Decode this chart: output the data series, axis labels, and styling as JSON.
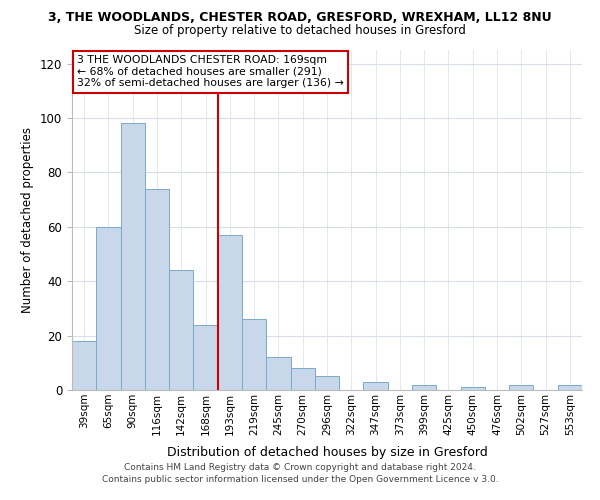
{
  "title": "3, THE WOODLANDS, CHESTER ROAD, GRESFORD, WREXHAM, LL12 8NU",
  "subtitle": "Size of property relative to detached houses in Gresford",
  "xlabel": "Distribution of detached houses by size in Gresford",
  "ylabel": "Number of detached properties",
  "bar_color": "#c8d8ea",
  "bar_edge_color": "#7aaac8",
  "bins": [
    "39sqm",
    "65sqm",
    "90sqm",
    "116sqm",
    "142sqm",
    "168sqm",
    "193sqm",
    "219sqm",
    "245sqm",
    "270sqm",
    "296sqm",
    "322sqm",
    "347sqm",
    "373sqm",
    "399sqm",
    "425sqm",
    "450sqm",
    "476sqm",
    "502sqm",
    "527sqm",
    "553sqm"
  ],
  "values": [
    18,
    60,
    98,
    74,
    44,
    24,
    57,
    26,
    12,
    8,
    5,
    0,
    3,
    0,
    2,
    0,
    1,
    0,
    2,
    0,
    2
  ],
  "vline_index": 5,
  "vline_color": "#cc0000",
  "annotation_line1": "3 THE WOODLANDS CHESTER ROAD: 169sqm",
  "annotation_line2": "← 68% of detached houses are smaller (291)",
  "annotation_line3": "32% of semi-detached houses are larger (136) →",
  "annotation_box_color": "#ffffff",
  "annotation_box_edge": "#cc0000",
  "ylim": [
    0,
    125
  ],
  "yticks": [
    0,
    20,
    40,
    60,
    80,
    100,
    120
  ],
  "footer1": "Contains HM Land Registry data © Crown copyright and database right 2024.",
  "footer2": "Contains public sector information licensed under the Open Government Licence v 3.0.",
  "bg_color": "#ffffff",
  "grid_color": "#d8dde8"
}
